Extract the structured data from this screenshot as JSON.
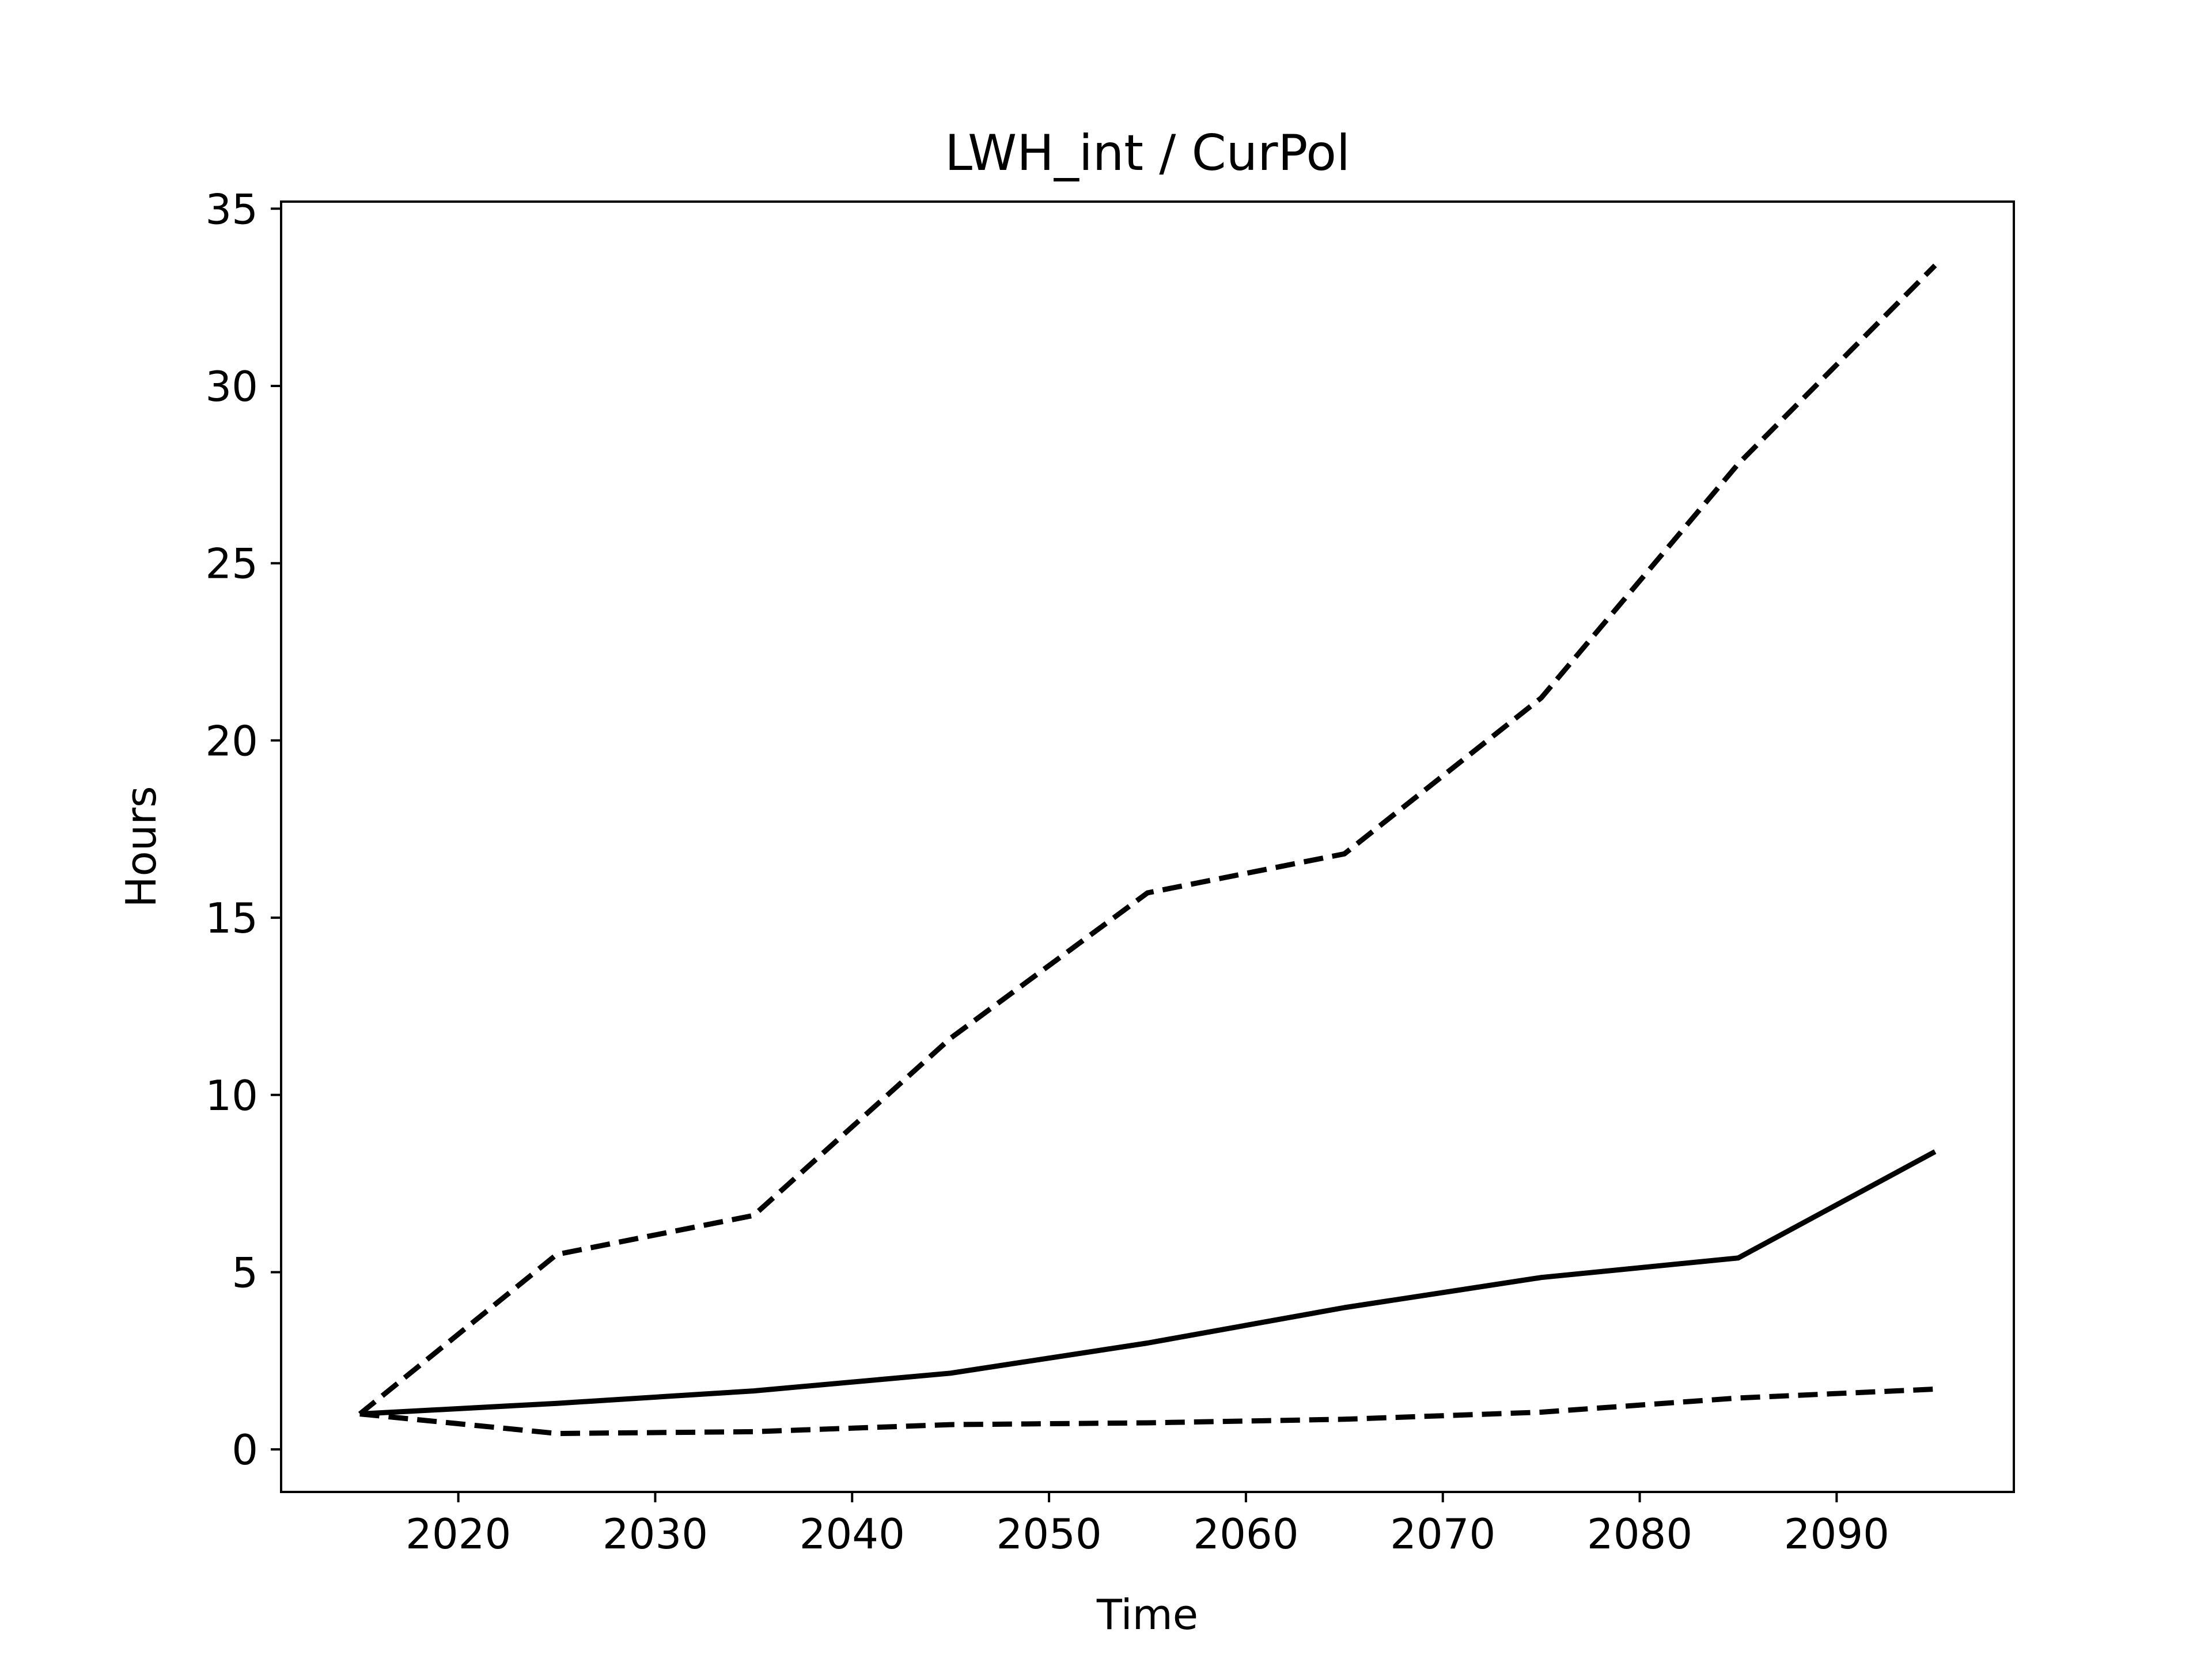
{
  "chart_data": {
    "type": "line",
    "title": "LWH_int / CurPol",
    "xlabel": "Time",
    "ylabel": "Hours",
    "xlim": [
      2011,
      2099
    ],
    "ylim": [
      -1.2,
      35.2
    ],
    "xticks": [
      2020,
      2030,
      2040,
      2050,
      2060,
      2070,
      2080,
      2090
    ],
    "yticks": [
      0,
      5,
      10,
      15,
      20,
      25,
      30,
      35
    ],
    "grid": false,
    "line_color": "#000000",
    "x": [
      2015,
      2025,
      2035,
      2045,
      2055,
      2065,
      2075,
      2085,
      2095
    ],
    "series": [
      {
        "style": "dashed",
        "values": [
          1.0,
          5.5,
          6.6,
          11.6,
          15.7,
          16.8,
          21.2,
          27.8,
          33.4
        ]
      },
      {
        "style": "solid",
        "values": [
          1.0,
          1.3,
          1.65,
          2.15,
          3.0,
          4.0,
          4.85,
          5.4,
          8.4
        ]
      },
      {
        "style": "dashed",
        "values": [
          1.0,
          0.45,
          0.5,
          0.7,
          0.75,
          0.85,
          1.05,
          1.45,
          1.7
        ]
      }
    ]
  }
}
